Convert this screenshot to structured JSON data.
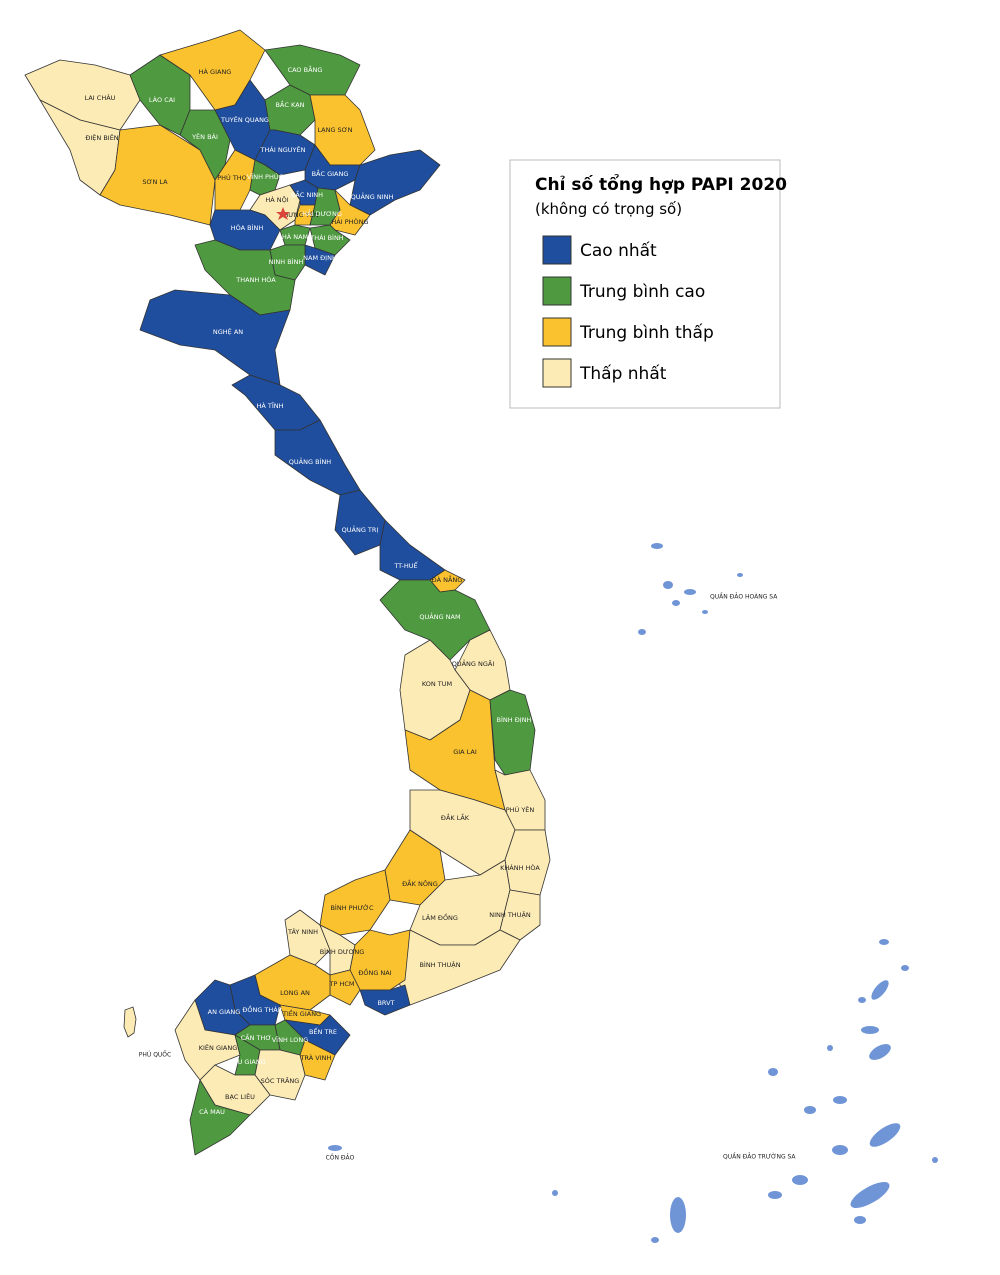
{
  "legend": {
    "title": "Chỉ số tổng hợp PAPI 2020",
    "subtitle": "(không có trọng số)",
    "items": [
      {
        "label": "Cao nhất",
        "color": "#1f4e9e"
      },
      {
        "label": "Trung bình cao",
        "color": "#4f9a40"
      },
      {
        "label": "Trung bình thấp",
        "color": "#fbc22f"
      },
      {
        "label": "Thấp nhất",
        "color": "#fdebb5"
      }
    ]
  },
  "provinces": [
    {
      "label": "LAI CHÂU",
      "color": "#fdebb5"
    },
    {
      "label": "ĐIỆN BIÊN",
      "color": "#fdebb5"
    },
    {
      "label": "SƠN LA",
      "color": "#fbc22f"
    },
    {
      "label": "LÀO CAI",
      "color": "#4f9a40"
    },
    {
      "label": "YÊN BÁI",
      "color": "#4f9a40"
    },
    {
      "label": "HÀ GIANG",
      "color": "#fbc22f"
    },
    {
      "label": "CAO BẰNG",
      "color": "#4f9a40"
    },
    {
      "label": "TUYÊN QUANG",
      "color": "#1f4e9e"
    },
    {
      "label": "BẮC KẠN",
      "color": "#4f9a40"
    },
    {
      "label": "LẠNG SƠN",
      "color": "#fbc22f"
    },
    {
      "label": "THÁI NGUYÊN",
      "color": "#1f4e9e"
    },
    {
      "label": "PHÚ THỌ",
      "color": "#fbc22f"
    },
    {
      "label": "VĨNH PHÚC",
      "color": "#4f9a40"
    },
    {
      "label": "HÀ NỘI",
      "color": "#fdebb5"
    },
    {
      "label": "BẮC NINH",
      "color": "#1f4e9e"
    },
    {
      "label": "BẮC GIANG",
      "color": "#1f4e9e"
    },
    {
      "label": "QUẢNG NINH",
      "color": "#1f4e9e"
    },
    {
      "label": "HƯNG YÊN",
      "color": "#fbc22f"
    },
    {
      "label": "HẢI DƯƠNG",
      "color": "#4f9a40"
    },
    {
      "label": "HẢI PHÒNG",
      "color": "#fbc22f"
    },
    {
      "label": "HÒA BÌNH",
      "color": "#1f4e9e"
    },
    {
      "label": "HÀ NAM",
      "color": "#4f9a40"
    },
    {
      "label": "THÁI BÌNH",
      "color": "#4f9a40"
    },
    {
      "label": "NAM ĐỊNH",
      "color": "#1f4e9e"
    },
    {
      "label": "NINH BÌNH",
      "color": "#4f9a40"
    },
    {
      "label": "THANH HÓA",
      "color": "#4f9a40"
    },
    {
      "label": "NGHỆ AN",
      "color": "#1f4e9e"
    },
    {
      "label": "HÀ TĨNH",
      "color": "#1f4e9e"
    },
    {
      "label": "QUẢNG BÌNH",
      "color": "#1f4e9e"
    },
    {
      "label": "QUẢNG TRỊ",
      "color": "#1f4e9e"
    },
    {
      "label": "TT-HUẾ",
      "color": "#1f4e9e"
    },
    {
      "label": "ĐÀ NẴNG",
      "color": "#fbc22f"
    },
    {
      "label": "QUẢNG NAM",
      "color": "#4f9a40"
    },
    {
      "label": "QUẢNG NGÃI",
      "color": "#fdebb5"
    },
    {
      "label": "KON TUM",
      "color": "#fdebb5"
    },
    {
      "label": "GIA LAI",
      "color": "#fbc22f"
    },
    {
      "label": "BÌNH ĐỊNH",
      "color": "#4f9a40"
    },
    {
      "label": "PHÚ YÊN",
      "color": "#fdebb5"
    },
    {
      "label": "ĐẮK LẮK",
      "color": "#fdebb5"
    },
    {
      "label": "KHÁNH HÒA",
      "color": "#fdebb5"
    },
    {
      "label": "ĐẮK NÔNG",
      "color": "#fbc22f"
    },
    {
      "label": "LÂM ĐỒNG",
      "color": "#fdebb5"
    },
    {
      "label": "NINH THUẬN",
      "color": "#fdebb5"
    },
    {
      "label": "BÌNH THUẬN",
      "color": "#fdebb5"
    },
    {
      "label": "BÌNH PHƯỚC",
      "color": "#fbc22f"
    },
    {
      "label": "TÂY NINH",
      "color": "#fdebb5"
    },
    {
      "label": "BÌNH DƯƠNG",
      "color": "#fdebb5"
    },
    {
      "label": "ĐỒNG NAI",
      "color": "#fbc22f"
    },
    {
      "label": "TP HCM",
      "color": "#fbc22f"
    },
    {
      "label": "BRVT",
      "color": "#1f4e9e"
    },
    {
      "label": "LONG AN",
      "color": "#fbc22f"
    },
    {
      "label": "ĐỒNG THÁP",
      "color": "#1f4e9e"
    },
    {
      "label": "AN GIANG",
      "color": "#1f4e9e"
    },
    {
      "label": "TIỀN GIANG",
      "color": "#fbc22f"
    },
    {
      "label": "BẾN TRE",
      "color": "#1f4e9e"
    },
    {
      "label": "VĨNH LONG",
      "color": "#4f9a40"
    },
    {
      "label": "CẦN THƠ",
      "color": "#4f9a40"
    },
    {
      "label": "TRÀ VINH",
      "color": "#fbc22f"
    },
    {
      "label": "KIÊN GIANG",
      "color": "#fdebb5"
    },
    {
      "label": "HẬU GIANG",
      "color": "#4f9a40"
    },
    {
      "label": "SÓC TRĂNG",
      "color": "#fdebb5"
    },
    {
      "label": "BẠC LIÊU",
      "color": "#fdebb5"
    },
    {
      "label": "CÀ MAU",
      "color": "#4f9a40"
    }
  ],
  "islands": {
    "hoang_sa": "QUẦN ĐẢO HOÀNG SA",
    "truong_sa": "QUẦN ĐẢO TRƯỜNG SA",
    "con_dao": "CÔN ĐẢO",
    "phu_quoc": "PHÚ QUỐC"
  }
}
